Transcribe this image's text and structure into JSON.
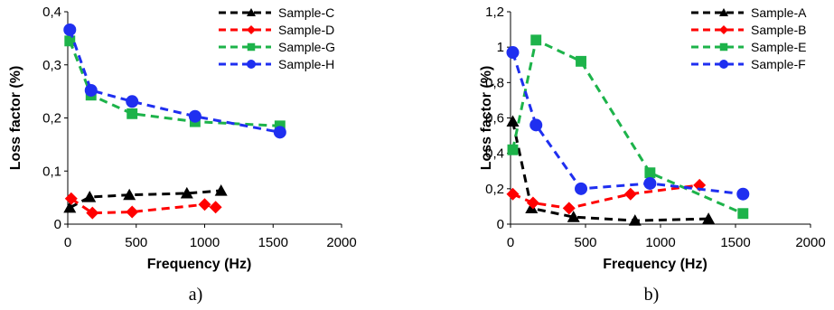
{
  "chart_data": [
    {
      "type": "line",
      "panel_label": "a)",
      "xlabel": "Frequency (Hz)",
      "ylabel": "Loss factor (%)",
      "xlim": [
        0,
        2000
      ],
      "ylim": [
        0,
        0.4
      ],
      "x_ticks": [
        "0",
        "500",
        "1000",
        "1500",
        "2000"
      ],
      "y_ticks": [
        "0",
        "0,1",
        "0,2",
        "0,3",
        "0,4"
      ],
      "grid": false,
      "legend_position": "top-right",
      "series": [
        {
          "name": "Sample-C",
          "color": "#000000",
          "marker": "triangle",
          "x": [
            15,
            160,
            450,
            870,
            1120
          ],
          "y": [
            0.031,
            0.051,
            0.055,
            0.058,
            0.063
          ]
        },
        {
          "name": "Sample-D",
          "color": "#ff0000",
          "marker": "diamond",
          "x": [
            25,
            180,
            470,
            1000,
            1080
          ],
          "y": [
            0.048,
            0.021,
            0.023,
            0.037,
            0.032
          ]
        },
        {
          "name": "Sample-G",
          "color": "#1db34a",
          "marker": "square",
          "x": [
            15,
            170,
            470,
            930,
            1550
          ],
          "y": [
            0.345,
            0.243,
            0.208,
            0.193,
            0.185
          ]
        },
        {
          "name": "Sample-H",
          "color": "#1f2ff0",
          "marker": "circle",
          "x": [
            15,
            170,
            470,
            930,
            1550
          ],
          "y": [
            0.366,
            0.252,
            0.231,
            0.203,
            0.173
          ]
        }
      ]
    },
    {
      "type": "line",
      "panel_label": "b)",
      "xlabel": "Frequency (Hz)",
      "ylabel": "Loss factor (%)",
      "xlim": [
        0,
        2000
      ],
      "ylim": [
        0,
        1.2
      ],
      "x_ticks": [
        "0",
        "500",
        "1000",
        "1500",
        "2000"
      ],
      "y_ticks": [
        "0",
        "0,2",
        "0,4",
        "0,6",
        "0,8",
        "1",
        "1,2"
      ],
      "grid": false,
      "legend_position": "top-right",
      "series": [
        {
          "name": "Sample-A",
          "color": "#000000",
          "marker": "triangle",
          "x": [
            15,
            140,
            420,
            830,
            1320
          ],
          "y": [
            0.58,
            0.09,
            0.04,
            0.02,
            0.03
          ]
        },
        {
          "name": "Sample-B",
          "color": "#ff0000",
          "marker": "diamond",
          "x": [
            15,
            150,
            390,
            800,
            1260
          ],
          "y": [
            0.17,
            0.12,
            0.09,
            0.17,
            0.22
          ]
        },
        {
          "name": "Sample-E",
          "color": "#1db34a",
          "marker": "square",
          "x": [
            15,
            170,
            470,
            930,
            1550
          ],
          "y": [
            0.42,
            1.04,
            0.92,
            0.29,
            0.06
          ]
        },
        {
          "name": "Sample-F",
          "color": "#1f2ff0",
          "marker": "circle",
          "x": [
            15,
            170,
            470,
            930,
            1550
          ],
          "y": [
            0.97,
            0.56,
            0.2,
            0.23,
            0.17
          ]
        }
      ]
    }
  ]
}
